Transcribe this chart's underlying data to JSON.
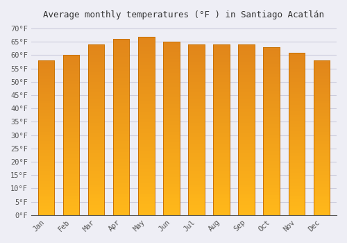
{
  "title": "Average monthly temperatures (°F ) in Santiago Acatlán",
  "months": [
    "Jan",
    "Feb",
    "Mar",
    "Apr",
    "May",
    "Jun",
    "Jul",
    "Aug",
    "Sep",
    "Oct",
    "Nov",
    "Dec"
  ],
  "values": [
    58,
    60,
    64,
    66,
    67,
    65,
    64,
    64,
    64,
    63,
    61,
    58
  ],
  "bar_color": "#F5A623",
  "bar_gradient_top": "#F0A020",
  "bar_gradient_bottom": "#FFD060",
  "bar_edge_color": "#C87000",
  "background_color": "#EEEEF5",
  "plot_bg_color": "#EEEEF5",
  "grid_color": "#CCCCDD",
  "yticks": [
    0,
    5,
    10,
    15,
    20,
    25,
    30,
    35,
    40,
    45,
    50,
    55,
    60,
    65,
    70
  ],
  "ytick_labels": [
    "0°F",
    "5°F",
    "10°F",
    "15°F",
    "20°F",
    "25°F",
    "30°F",
    "35°F",
    "40°F",
    "45°F",
    "50°F",
    "55°F",
    "60°F",
    "65°F",
    "70°F"
  ],
  "ylim": [
    0,
    72
  ],
  "title_fontsize": 9,
  "tick_fontsize": 7.5,
  "tick_color": "#555555",
  "axis_color": "#555555"
}
